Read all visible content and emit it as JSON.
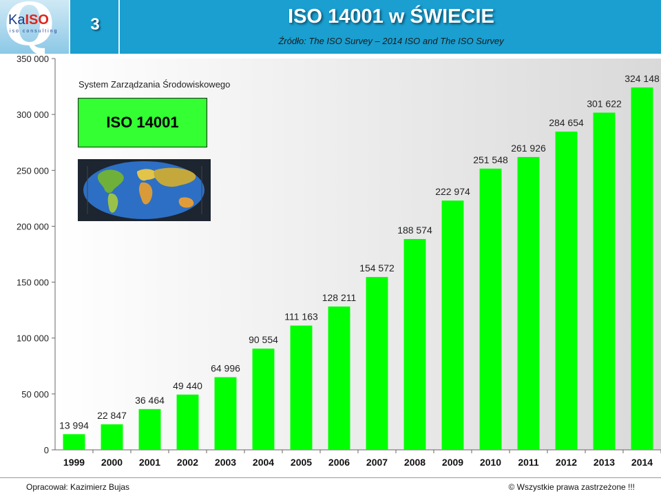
{
  "header": {
    "logo": "KaISO iso consulting",
    "logo_letter": "Q",
    "logo_ka": "Ka",
    "logo_iso": "ISO",
    "logo_sub": "iso consulting",
    "slide_number": "3",
    "title": "ISO 14001 w ŚWIECIE",
    "subtitle": "Źródło: The ISO Survey – 2014   ISO and The ISO Survey"
  },
  "inset": {
    "caption": "System Zarządzania Środowiskowego",
    "badge": "ISO 14001",
    "map_icon": "world-map-icon"
  },
  "chart_data": {
    "type": "bar",
    "categories": [
      "1999",
      "2000",
      "2001",
      "2002",
      "2003",
      "2004",
      "2005",
      "2006",
      "2007",
      "2008",
      "2009",
      "2010",
      "2011",
      "2012",
      "2013",
      "2014"
    ],
    "values": [
      13994,
      22847,
      36464,
      49440,
      64996,
      90554,
      111163,
      128211,
      154572,
      188574,
      222974,
      251548,
      261926,
      284654,
      301622,
      324148
    ],
    "data_labels": [
      "13 994",
      "22 847",
      "36 464",
      "49 440",
      "64 996",
      "90 554",
      "111 163",
      "128 211",
      "154 572",
      "188 574",
      "222 974",
      "251 548",
      "261 926",
      "284 654",
      "301 622",
      "324 148"
    ],
    "ylim": [
      0,
      350000
    ],
    "yticks": [
      0,
      50000,
      100000,
      150000,
      200000,
      250000,
      300000,
      350000
    ],
    "ytick_labels": [
      "0",
      "50 000",
      "100 000",
      "150 000",
      "200 000",
      "250 000",
      "300 000",
      "350 000"
    ],
    "bar_color": "#00ff00",
    "grid": false,
    "legend": "none"
  },
  "footer": {
    "left": "Opracował: Kazimierz Bujas",
    "right": "© Wszystkie prawa zastrzeżone !!!"
  }
}
